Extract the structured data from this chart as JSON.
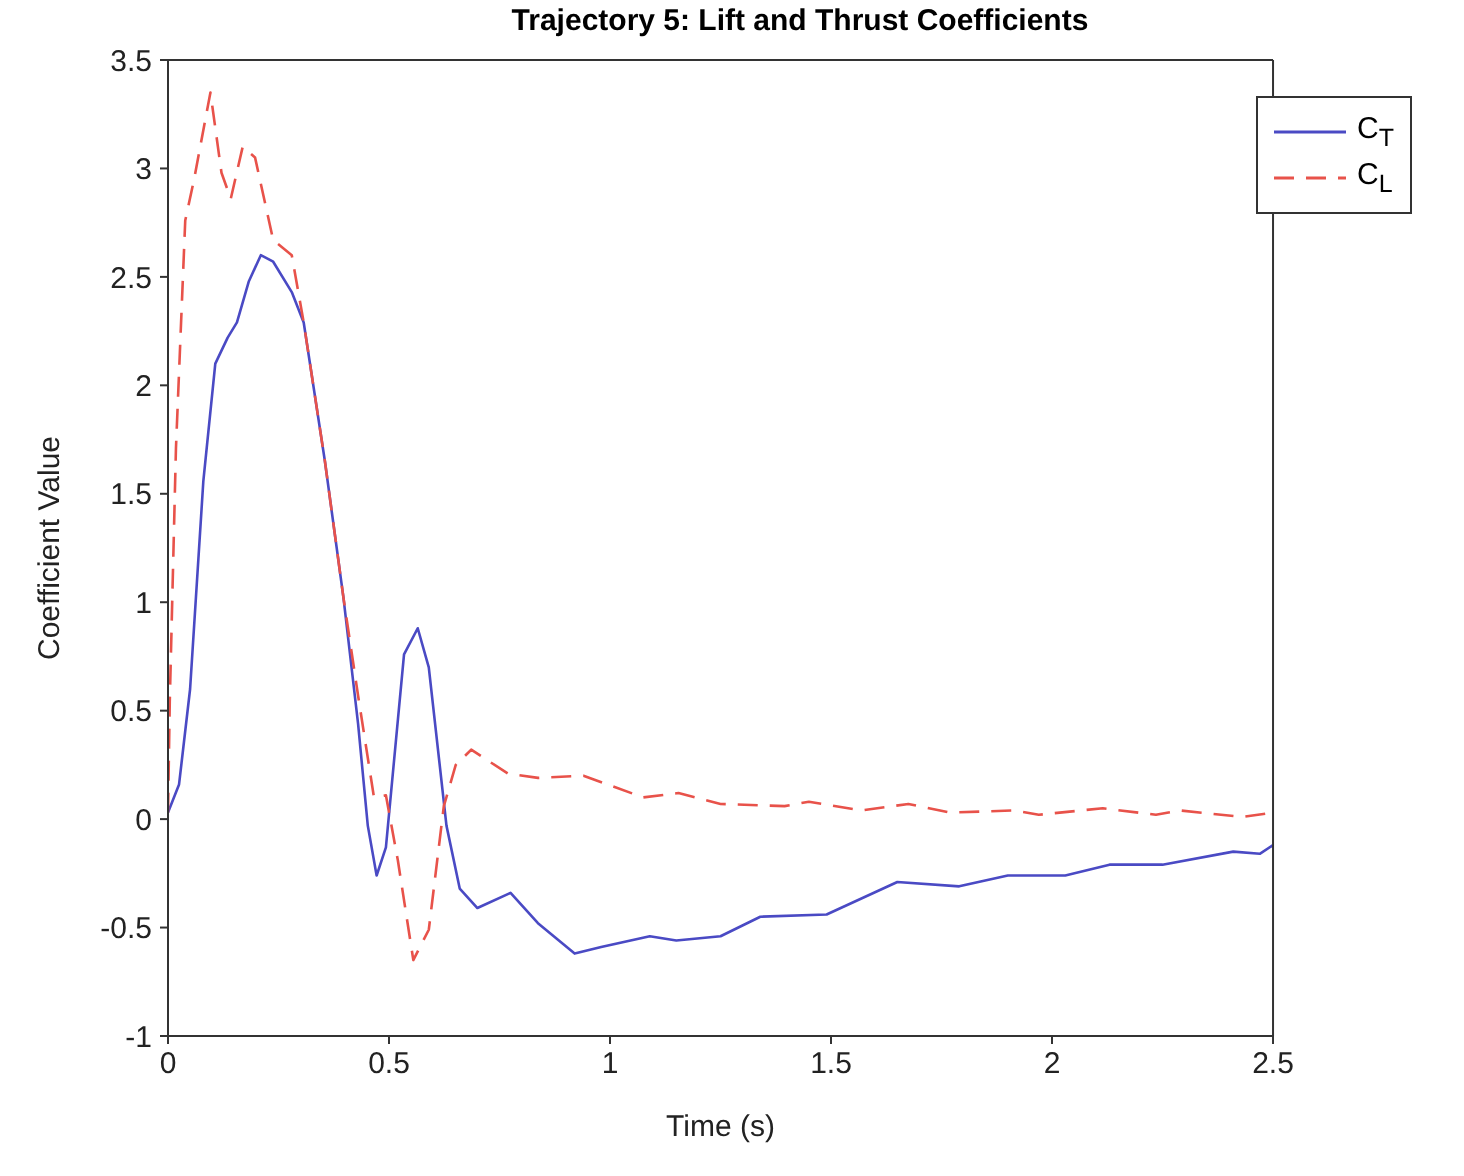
{
  "chart_data": {
    "type": "line",
    "title": "Trajectory 5: Lift and Thrust Coefficients",
    "xlabel": "Time (s)",
    "ylabel": "Coefficient Value",
    "xlim": [
      0,
      2.5
    ],
    "xticks": [
      0,
      0.5,
      1,
      1.5,
      2,
      2.5
    ],
    "ylim": [
      -1,
      3.5
    ],
    "yticks": [
      -1,
      -0.5,
      0,
      0.5,
      1,
      1.5,
      2,
      2.5,
      3,
      3.5
    ],
    "legend": "top right",
    "marker": "none",
    "series": [
      {
        "name": "C$_{T}$",
        "color": "#4a4ac4",
        "line_style": "solid",
        "x": [
          0,
          0.025,
          0.05,
          0.08,
          0.107,
          0.135,
          0.156,
          0.183,
          0.21,
          0.238,
          0.28,
          0.307,
          0.355,
          0.397,
          0.43,
          0.452,
          0.472,
          0.493,
          0.534,
          0.565,
          0.59,
          0.63,
          0.66,
          0.7,
          0.775,
          0.837,
          0.92,
          0.98,
          1.09,
          1.15,
          1.25,
          1.34,
          1.49,
          1.65,
          1.79,
          1.9,
          2.03,
          2.13,
          2.25,
          2.41,
          2.47,
          2.5
        ],
        "values": [
          0.03,
          0.16,
          0.6,
          1.56,
          2.1,
          2.22,
          2.29,
          2.48,
          2.6,
          2.57,
          2.43,
          2.29,
          1.65,
          1.02,
          0.44,
          -0.03,
          -0.26,
          -0.13,
          0.76,
          0.88,
          0.7,
          -0.03,
          -0.32,
          -0.41,
          -0.34,
          -0.48,
          -0.62,
          -0.59,
          -0.54,
          -0.56,
          -0.54,
          -0.45,
          -0.44,
          -0.29,
          -0.31,
          -0.26,
          -0.26,
          -0.21,
          -0.21,
          -0.15,
          -0.16,
          -0.12
        ]
      },
      {
        "name": "C$_{L}$",
        "color": "#e8524a",
        "line_style": "dashed",
        "x": [
          0,
          0.004,
          0.018,
          0.039,
          0.059,
          0.096,
          0.121,
          0.142,
          0.169,
          0.197,
          0.238,
          0.28,
          0.307,
          0.355,
          0.397,
          0.43,
          0.466,
          0.493,
          0.52,
          0.555,
          0.59,
          0.624,
          0.651,
          0.686,
          0.769,
          0.837,
          0.94,
          1.075,
          1.155,
          1.25,
          1.395,
          1.45,
          1.57,
          1.675,
          1.77,
          1.915,
          1.97,
          2.115,
          2.235,
          2.29,
          2.43,
          2.5
        ],
        "values": [
          0.03,
          0.54,
          1.71,
          2.76,
          2.95,
          3.35,
          2.98,
          2.86,
          3.1,
          3.05,
          2.67,
          2.6,
          2.29,
          1.65,
          1.02,
          0.57,
          0.1,
          0.11,
          -0.19,
          -0.65,
          -0.51,
          0.06,
          0.25,
          0.32,
          0.21,
          0.19,
          0.2,
          0.1,
          0.12,
          0.07,
          0.06,
          0.08,
          0.04,
          0.07,
          0.03,
          0.04,
          0.02,
          0.05,
          0.02,
          0.04,
          0.01,
          0.03
        ]
      }
    ]
  }
}
